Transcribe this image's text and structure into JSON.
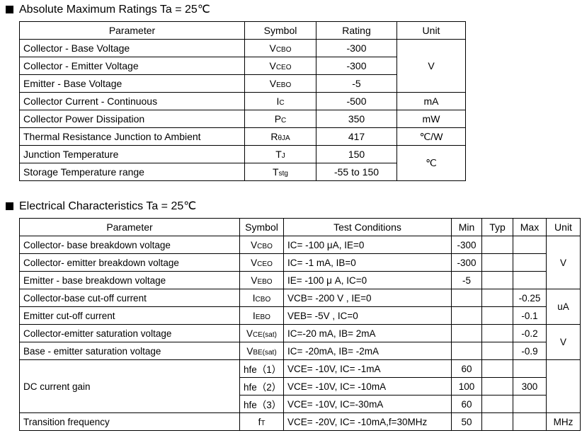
{
  "section1": {
    "title": "Absolute Maximum Ratings Ta = 25℃",
    "header": [
      "Parameter",
      "Symbol",
      "Rating",
      "Unit"
    ],
    "rows": [
      {
        "parameter": "Collector - Base Voltage",
        "symbol": {
          "main": "V",
          "sub": "CBO"
        },
        "rating": "-300",
        "unit": "V"
      },
      {
        "parameter": "Collector - Emitter Voltage",
        "symbol": {
          "main": "V",
          "sub": "CEO"
        },
        "rating": "-300"
      },
      {
        "parameter": "Emitter - Base Voltage",
        "symbol": {
          "main": "V",
          "sub": "EBO"
        },
        "rating": "-5"
      },
      {
        "parameter": "Collector Current  - Continuous",
        "symbol": {
          "main": "I",
          "sub": "C"
        },
        "rating": "-500",
        "unit": "mA"
      },
      {
        "parameter": "Collector Power Dissipation",
        "symbol": {
          "main": "P",
          "sub": "C"
        },
        "rating": "350",
        "unit": "mW"
      },
      {
        "parameter": "Thermal Resistance Junction to Ambient",
        "symbol": {
          "main": "R",
          "sub": "θJA"
        },
        "rating": "417",
        "unit": "℃/W"
      },
      {
        "parameter": "Junction Temperature",
        "symbol": {
          "main": "T",
          "sub": "J"
        },
        "rating": "150",
        "unit": "℃"
      },
      {
        "parameter": "Storage Temperature range",
        "symbol": {
          "main": "T",
          "sub": "stg"
        },
        "rating": "-55 to 150"
      }
    ]
  },
  "section2": {
    "title": "Electrical Characteristics Ta = 25℃",
    "header": [
      "Parameter",
      "Symbol",
      "Test Conditions",
      "Min",
      "Typ",
      "Max",
      "Unit"
    ],
    "rows": [
      {
        "parameter": "Collector- base breakdown voltage",
        "symbol": {
          "main": "V",
          "sub": "CBO"
        },
        "conditions": "IC= -100 μA,  IE=0",
        "min": "-300",
        "unit": "V"
      },
      {
        "parameter": "Collector- emitter breakdown voltage",
        "symbol": {
          "main": "V",
          "sub": "CEO"
        },
        "conditions": "IC= -1 mA,  IB=0",
        "min": "-300"
      },
      {
        "parameter": "Emitter - base breakdown voltage",
        "symbol": {
          "main": "V",
          "sub": "EBO"
        },
        "conditions": "IE= -100 μ A,  IC=0",
        "min": "-5"
      },
      {
        "parameter": "Collector-base cut-off current",
        "symbol": {
          "main": "I",
          "sub": "CBO"
        },
        "conditions": "VCB= -200 V , IE=0",
        "max": "-0.25",
        "unit": "uA"
      },
      {
        "parameter": "Emitter cut-off current",
        "symbol": {
          "main": "I",
          "sub": "EBO"
        },
        "conditions": "VEB= -5V , IC=0",
        "max": "-0.1"
      },
      {
        "parameter": "Collector-emitter saturation voltage",
        "symbol": {
          "main": "V",
          "sub": "CE(sat)"
        },
        "conditions": "IC=-20 mA, IB= 2mA",
        "max": "-0.2",
        "unit": "V"
      },
      {
        "parameter": "Base - emitter saturation voltage",
        "symbol": {
          "main": "V",
          "sub": "BE(sat)"
        },
        "conditions": "IC= -20mA, IB= -2mA",
        "max": "-0.9"
      },
      {
        "parameter": "DC current gain",
        "symbol": {
          "main": "hfe（1）"
        },
        "conditions": "VCE= -10V, IC= -1mA",
        "min": "60"
      },
      {
        "symbol": {
          "main": "hfe（2）"
        },
        "conditions": "VCE= -10V, IC= -10mA",
        "min": "100",
        "max": "300"
      },
      {
        "symbol": {
          "main": "hfe（3）"
        },
        "conditions": "VCE= -10V, IC=-30mA",
        "min": "60"
      },
      {
        "parameter": "Transition frequency",
        "symbol": {
          "main": "f",
          "sub": "T"
        },
        "conditions": "VCE= -20V, IC= -10mA,f=30MHz",
        "min": "50",
        "unit": "MHz"
      }
    ]
  }
}
